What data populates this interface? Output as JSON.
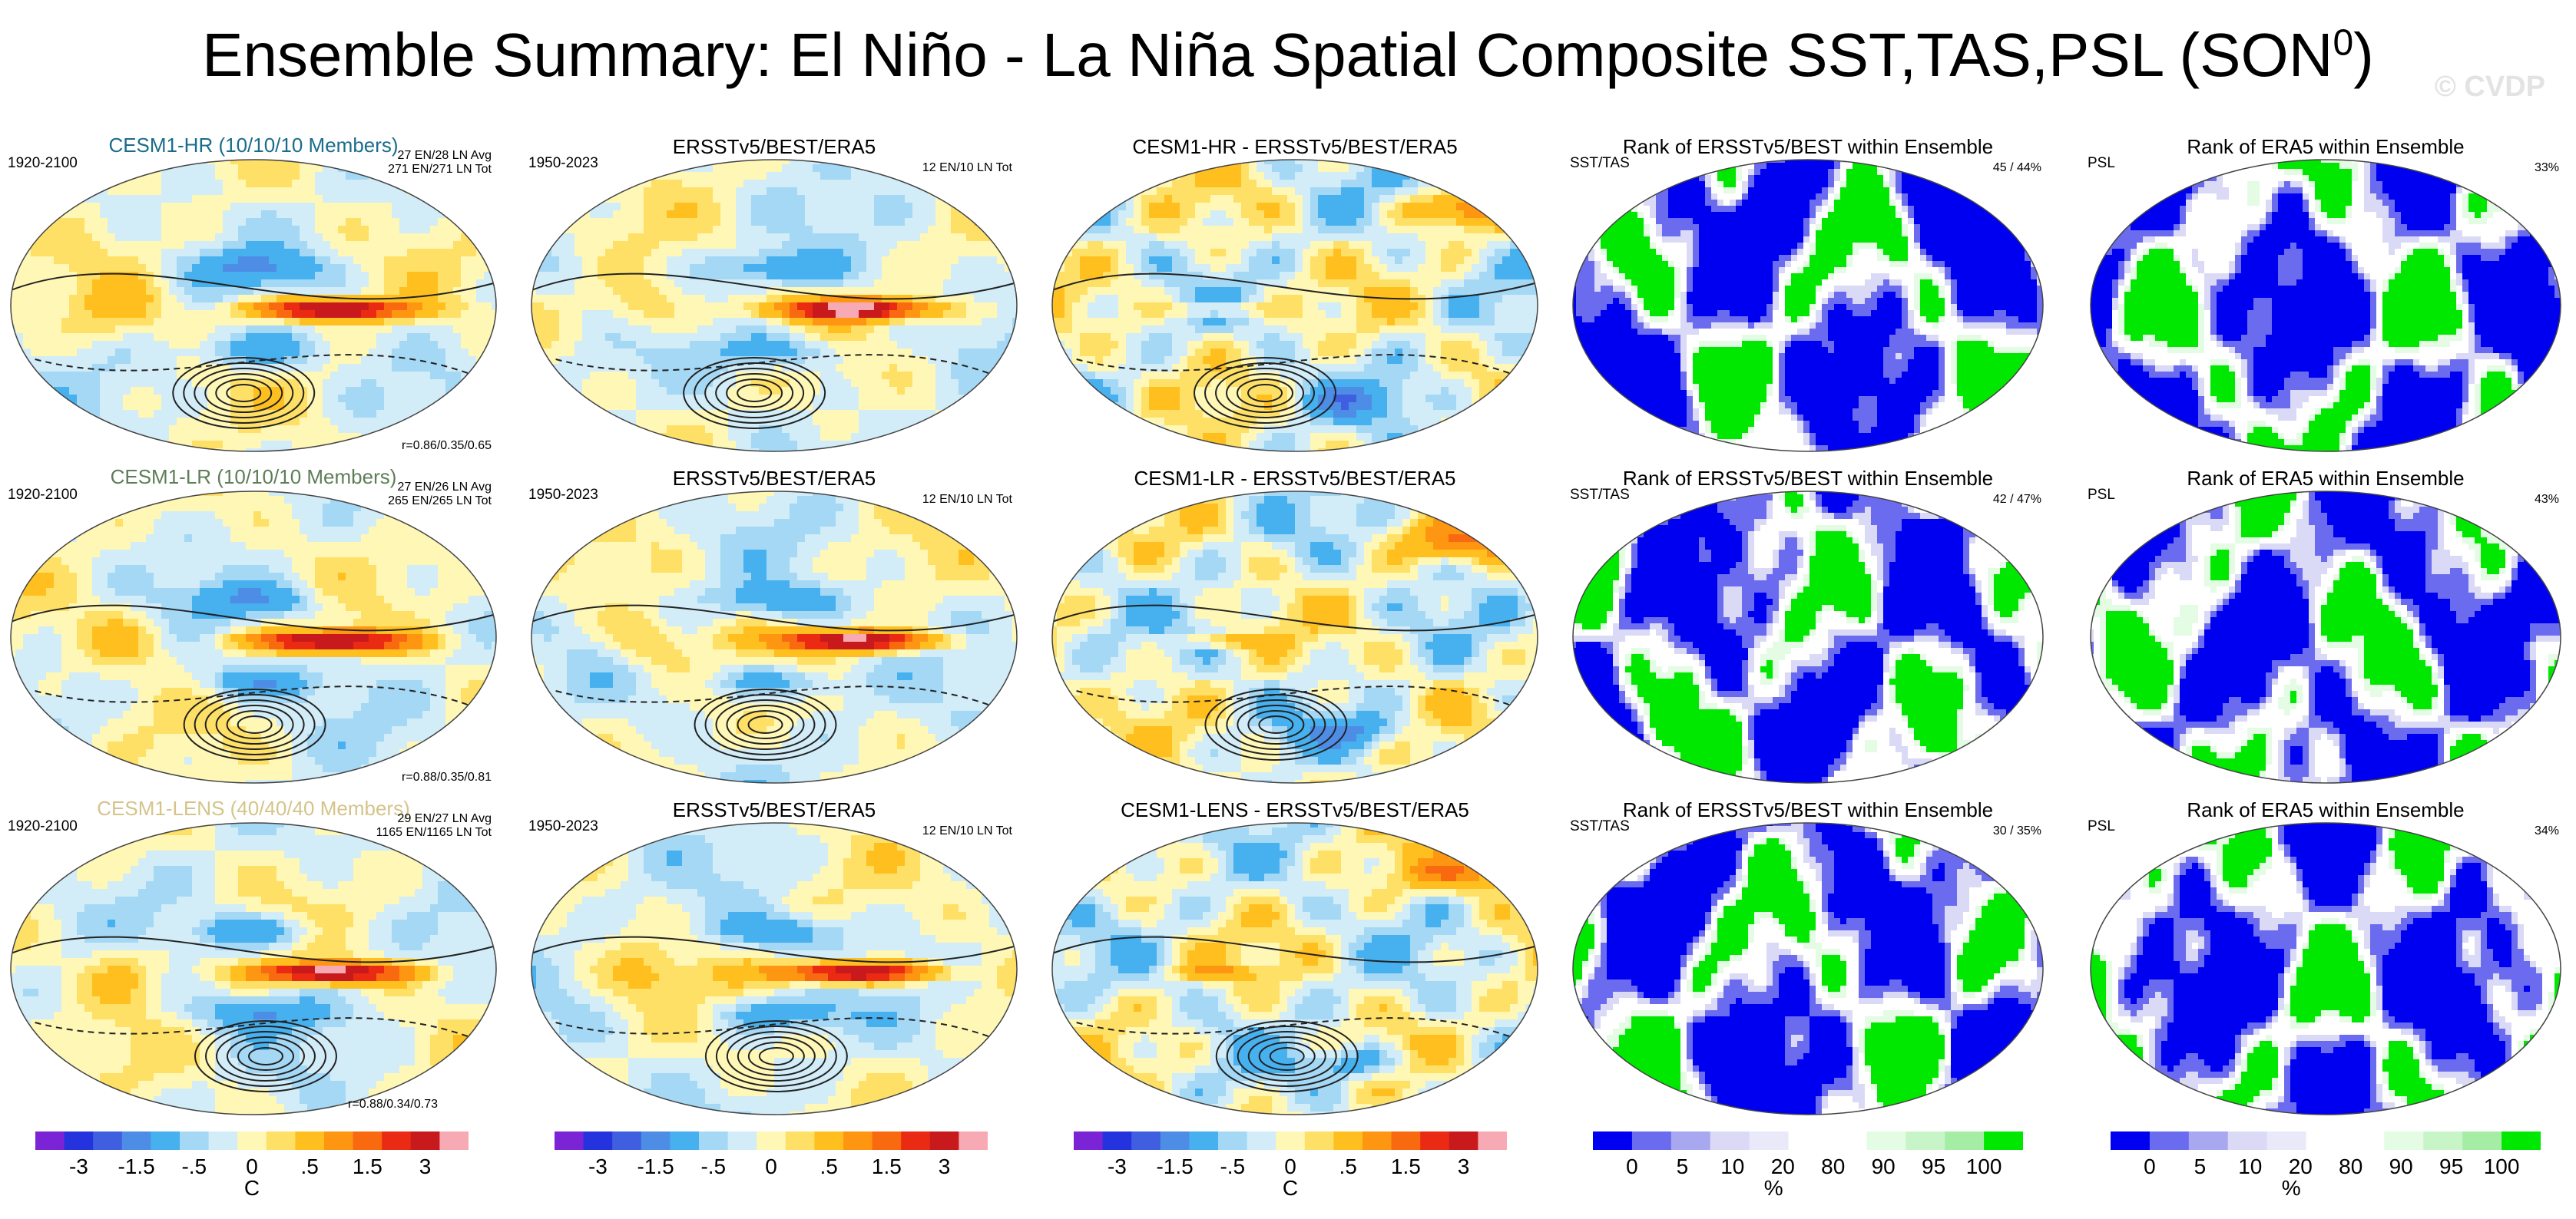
{
  "title": {
    "main": "Ensemble Summary: El Niño - La Niña Spatial Composite SST,TAS,PSL (SON",
    "sup": "0",
    "close": ")"
  },
  "watermark": "© CVDP",
  "colors": {
    "diverging": [
      "#7b24d6",
      "#2433dd",
      "#3f5fe0",
      "#4d8de6",
      "#47b0ee",
      "#a4d8f5",
      "#d2ecf8",
      "#fff7b6",
      "#ffe066",
      "#ffbf1f",
      "#ff9612",
      "#f96a10",
      "#ea2a13",
      "#c81a1c",
      "#f7aab3"
    ],
    "rank": [
      "#0000f0",
      "#6b6bf0",
      "#a8a8f0",
      "#dadaf6",
      "#e9e9f9",
      "#ffffff",
      "#ffffff",
      "#e4fbe4",
      "#c8f5c8",
      "#a5eda5",
      "#00e800"
    ],
    "model_colors": {
      "hr": "#1a6c8c",
      "lr": "#5e7e58",
      "lens": "#d4c48a"
    }
  },
  "rows": [
    {
      "model": {
        "title": "CESM1-HR (10/10/10 Members)",
        "period": "1920-2100",
        "avg": "27 EN/28 LN Avg",
        "tot": "271 EN/271 LN Tot",
        "r": "r=0.86/0.35/0.65"
      },
      "obs": {
        "title": "ERSSTv5/BEST/ERA5",
        "period": "1950-2023",
        "tot": "12 EN/10 LN Tot"
      },
      "diff": {
        "title": "CESM1-HR - ERSSTv5/BEST/ERA5"
      },
      "rank1": {
        "title": "Rank of ERSSTv5/BEST within Ensemble",
        "var": "SST/TAS",
        "pct": "45 /  44%"
      },
      "rank2": {
        "title": "Rank of ERA5 within Ensemble",
        "var": "PSL",
        "pct": "33%"
      }
    },
    {
      "model": {
        "title": "CESM1-LR (10/10/10 Members)",
        "period": "1920-2100",
        "avg": "27 EN/26 LN Avg",
        "tot": "265 EN/265 LN Tot",
        "r": "r=0.88/0.35/0.81"
      },
      "obs": {
        "title": "ERSSTv5/BEST/ERA5",
        "period": "1950-2023",
        "tot": "12 EN/10 LN Tot"
      },
      "diff": {
        "title": "CESM1-LR - ERSSTv5/BEST/ERA5"
      },
      "rank1": {
        "title": "Rank of ERSSTv5/BEST within Ensemble",
        "var": "SST/TAS",
        "pct": "42 /  47%"
      },
      "rank2": {
        "title": "Rank of ERA5 within Ensemble",
        "var": "PSL",
        "pct": "43%"
      }
    },
    {
      "model": {
        "title": "CESM1-LENS (40/40/40 Members)",
        "period": "1920-2100",
        "avg": "29 EN/27 LN Avg",
        "tot": "1165 EN/1165 LN Tot",
        "r": "r=0.88/0.34/0.73"
      },
      "obs": {
        "title": "ERSSTv5/BEST/ERA5",
        "period": "1950-2023",
        "tot": "12 EN/10 LN Tot"
      },
      "diff": {
        "title": "CESM1-LENS - ERSSTv5/BEST/ERA5"
      },
      "rank1": {
        "title": "Rank of ERSSTv5/BEST within Ensemble",
        "var": "SST/TAS",
        "pct": "30 /  35%"
      },
      "rank2": {
        "title": "Rank of ERA5 within Ensemble",
        "var": "PSL",
        "pct": "34%"
      }
    }
  ],
  "chart_data": {
    "type": "heatmap",
    "description_units": "SST/TAS composite in C, PSL contours; rank in %",
    "colorbars": [
      {
        "id": "cb1",
        "type": "diverging",
        "unit": "C",
        "ticks": [
          "-3",
          "-1.5",
          "-.5",
          "0",
          ".5",
          "1.5",
          "3"
        ]
      },
      {
        "id": "cb2",
        "type": "diverging",
        "unit": "",
        "ticks": [
          "-3",
          "-1.5",
          "-.5",
          "0",
          ".5",
          "1.5",
          "3"
        ]
      },
      {
        "id": "cb3",
        "type": "diverging",
        "unit": "C",
        "ticks": [
          "-3",
          "-1.5",
          "-.5",
          "0",
          ".5",
          "1.5",
          "3"
        ]
      },
      {
        "id": "cb4",
        "type": "rank",
        "unit": "%",
        "ticks": [
          "0",
          "5",
          "10",
          "20",
          "80",
          "90",
          "95",
          "100"
        ]
      },
      {
        "id": "cb5",
        "type": "rank",
        "unit": "%",
        "ticks": [
          "0",
          "5",
          "10",
          "20",
          "80",
          "90",
          "95",
          "100"
        ]
      }
    ]
  }
}
